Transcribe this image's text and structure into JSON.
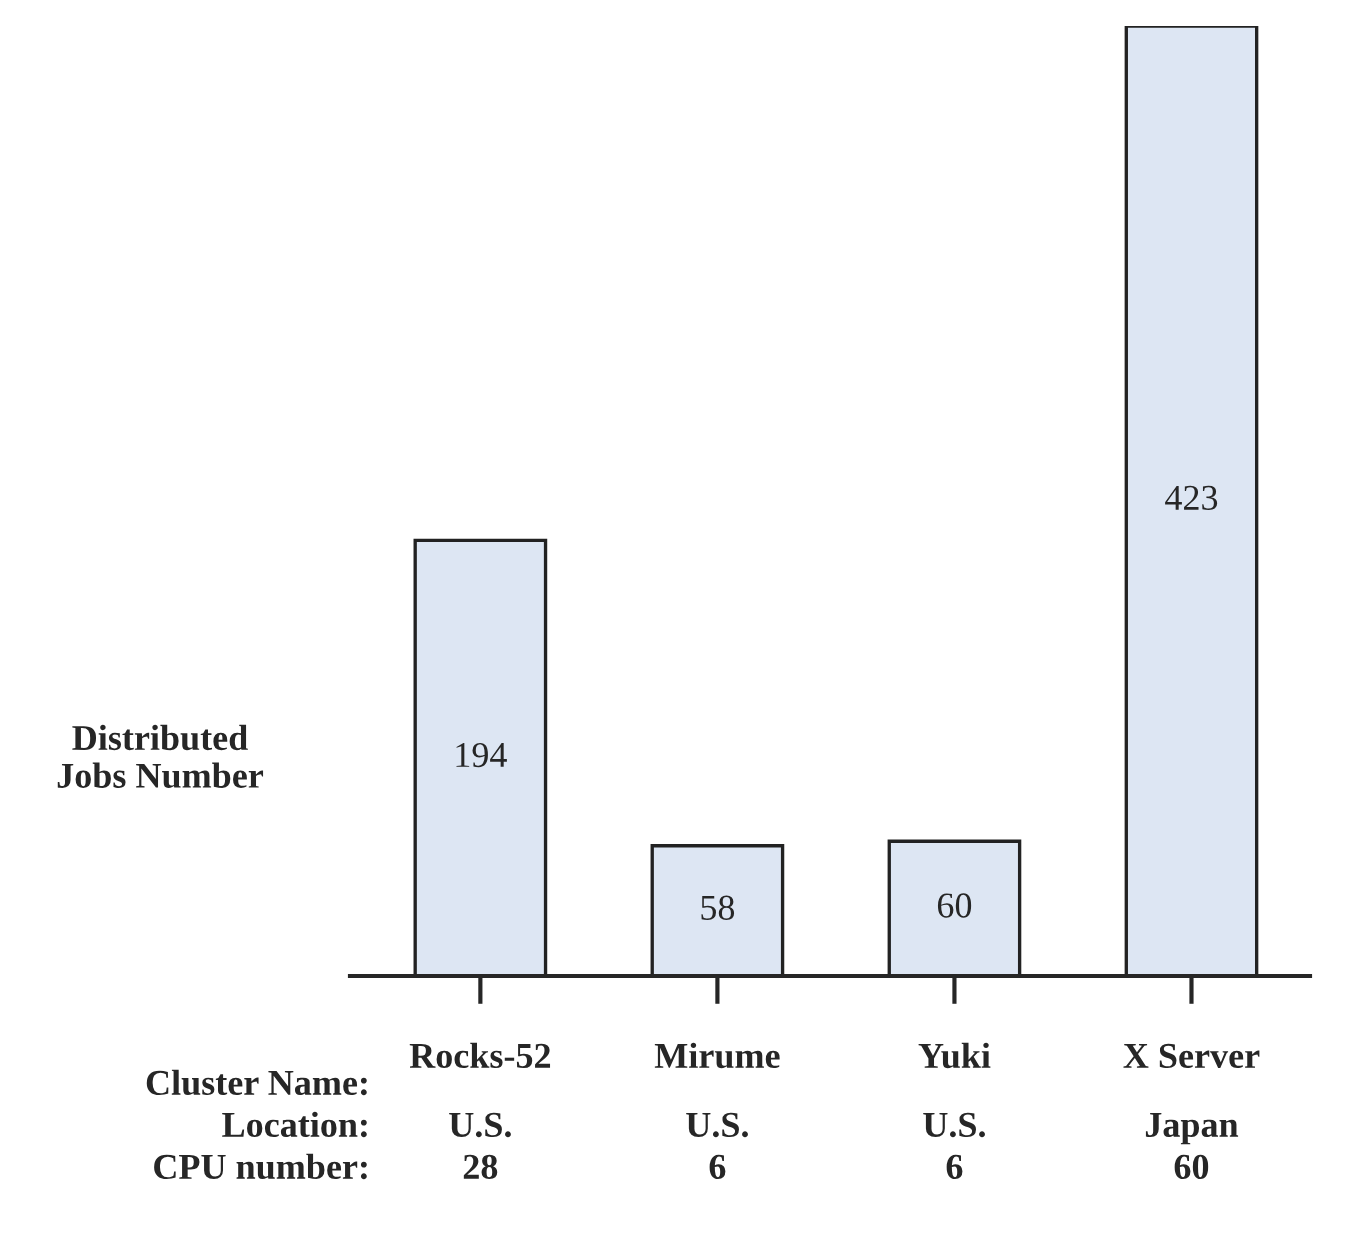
{
  "chart_data": {
    "type": "bar",
    "categories": [
      "Rocks-52",
      "Mirume",
      "Yuki",
      "X Server"
    ],
    "values": [
      194,
      58,
      60,
      423
    ],
    "color": "#dde6f3",
    "ylabel": "Distributed\nJobs Number",
    "annotations": [
      "Cluster Name:",
      "Location:",
      "CPU number:",
      "U.S.",
      "U.S.",
      "U.S.",
      "Japan",
      "28",
      "6",
      "6",
      "60"
    ],
    "data_labels": true
  }
}
